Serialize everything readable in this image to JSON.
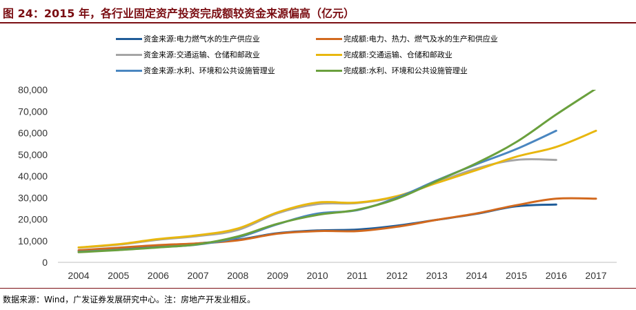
{
  "title": "图 24：2015 年，各行业固定资产投资完成额较资金来源偏高（亿元）",
  "source": "数据来源：Wind，广发证券发展研究中心。注：房地产开发业相反。",
  "chart_data": {
    "type": "line",
    "x": [
      "2004",
      "2005",
      "2006",
      "2007",
      "2008",
      "2009",
      "2010",
      "2011",
      "2012",
      "2013",
      "2014",
      "2015",
      "2016",
      "2017"
    ],
    "ylim": [
      0,
      80000
    ],
    "yticks": [
      "0",
      "10,000",
      "20,000",
      "30,000",
      "40,000",
      "50,000",
      "60,000",
      "70,000",
      "80,000"
    ],
    "ytick_values": [
      0,
      10000,
      20000,
      30000,
      40000,
      50000,
      60000,
      70000,
      80000
    ],
    "legend_placement": "top",
    "grid": false,
    "series": [
      {
        "name": "资金来源:电力燃气水的生产供应业",
        "color": "#1f5c99",
        "values": [
          5000,
          6000,
          7200,
          8800,
          10500,
          13500,
          14800,
          15200,
          17000,
          19700,
          22500,
          26000,
          26800,
          null
        ]
      },
      {
        "name": "完成额:电力、热力、燃气及水的生产和供应业",
        "color": "#d2691e",
        "values": [
          5600,
          6800,
          8000,
          8800,
          10200,
          13300,
          14500,
          14500,
          16500,
          19700,
          22700,
          26500,
          29500,
          29500
        ]
      },
      {
        "name": "资金来源:交通运输、仓储和邮政业",
        "color": "#a5a5a5",
        "values": [
          6800,
          8200,
          10500,
          12200,
          15000,
          22800,
          27000,
          27500,
          30500,
          37000,
          43500,
          47500,
          47500,
          null
        ]
      },
      {
        "name": "完成额:交通运输、仓储和邮政业",
        "color": "#e8b70f",
        "values": [
          6900,
          8400,
          10800,
          12600,
          15700,
          23200,
          27700,
          27700,
          30700,
          36800,
          42800,
          49000,
          53500,
          61000
        ]
      },
      {
        "name": "资金来源:水利、环境和公共设施管理业",
        "color": "#4a86c0",
        "values": [
          4900,
          5800,
          7000,
          8300,
          11500,
          17700,
          22600,
          24200,
          30000,
          38000,
          45500,
          52500,
          61000,
          null
        ]
      },
      {
        "name": "完成额:水利、环境和公共设施管理业",
        "color": "#6aa03d",
        "values": [
          4700,
          5700,
          6900,
          8400,
          12000,
          17900,
          22000,
          24400,
          29500,
          37700,
          46000,
          55800,
          68500,
          80500
        ]
      }
    ]
  }
}
